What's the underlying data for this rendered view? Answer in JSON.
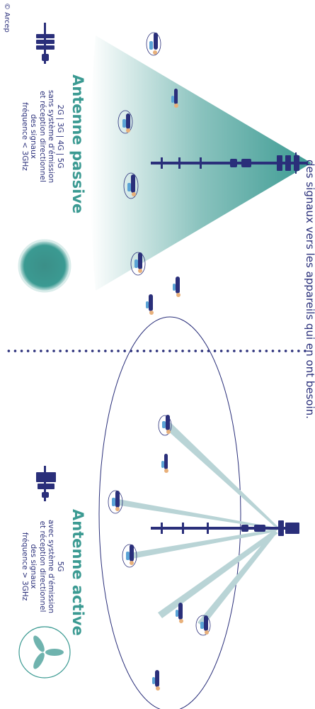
{
  "header": {
    "text": "des signaux vers les appareils qui en ont besoin."
  },
  "passive": {
    "title": "Antenne passive",
    "desc_lines": [
      "2G | 3G | 4G | 5G",
      "sans système d'émission",
      "et réception directionnel",
      "des signaux",
      "fréquence < 3GHz"
    ],
    "beam_color": "#3b9a92"
  },
  "active": {
    "title": "Antenne active",
    "desc_lines": [
      "5G",
      "avec système d'émission",
      "et réception directionnel",
      "des signaux",
      "fréquence > 3GHz"
    ],
    "beam_color": "#b9d4d6"
  },
  "credit": "© Arcep",
  "colors": {
    "navy": "#2a2f7a",
    "teal": "#3b9a92",
    "light_blue": "#5aa3d6",
    "skin": "#e8b07a"
  }
}
